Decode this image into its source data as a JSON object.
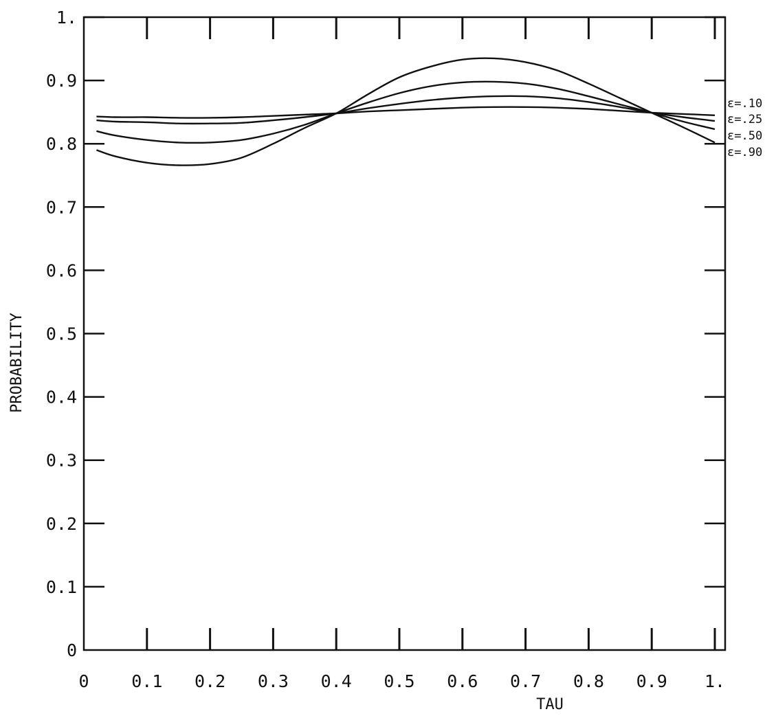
{
  "chart_data": {
    "type": "line",
    "title": "",
    "xlabel": "TAU",
    "ylabel": "PROBABILITY",
    "xlim": [
      0,
      1
    ],
    "ylim": [
      0,
      1
    ],
    "grid": false,
    "legend": "right",
    "x_ticks": [
      "0",
      "0.1",
      "0.2",
      "0.3",
      "0.4",
      "0.5",
      "0.6",
      "0.7",
      "0.8",
      "0.9",
      "1."
    ],
    "y_ticks": [
      "0",
      "0.1",
      "0.2",
      "0.3",
      "0.4",
      "0.5",
      "0.6",
      "0.7",
      "0.8",
      "0.9",
      "1."
    ],
    "x": [
      0.02,
      0.05,
      0.1,
      0.15,
      0.2,
      0.25,
      0.3,
      0.35,
      0.4,
      0.45,
      0.5,
      0.55,
      0.6,
      0.65,
      0.7,
      0.75,
      0.8,
      0.85,
      0.9,
      0.95,
      1.0
    ],
    "series": [
      {
        "name": "ε=.10",
        "values": [
          0.843,
          0.842,
          0.842,
          0.841,
          0.841,
          0.842,
          0.844,
          0.846,
          0.848,
          0.851,
          0.853,
          0.855,
          0.857,
          0.858,
          0.858,
          0.857,
          0.855,
          0.852,
          0.849,
          0.847,
          0.845
        ]
      },
      {
        "name": "ε=.25",
        "values": [
          0.837,
          0.835,
          0.834,
          0.832,
          0.832,
          0.833,
          0.837,
          0.842,
          0.848,
          0.856,
          0.863,
          0.869,
          0.873,
          0.875,
          0.875,
          0.872,
          0.866,
          0.858,
          0.849,
          0.842,
          0.836
        ]
      },
      {
        "name": "ε=.50",
        "values": [
          0.82,
          0.813,
          0.806,
          0.802,
          0.802,
          0.806,
          0.816,
          0.83,
          0.848,
          0.865,
          0.88,
          0.891,
          0.897,
          0.898,
          0.895,
          0.887,
          0.875,
          0.862,
          0.849,
          0.835,
          0.823
        ]
      },
      {
        "name": "ε=.90",
        "values": [
          0.79,
          0.78,
          0.77,
          0.766,
          0.768,
          0.778,
          0.8,
          0.825,
          0.848,
          0.878,
          0.905,
          0.922,
          0.933,
          0.935,
          0.929,
          0.916,
          0.895,
          0.872,
          0.849,
          0.826,
          0.802
        ]
      }
    ]
  }
}
